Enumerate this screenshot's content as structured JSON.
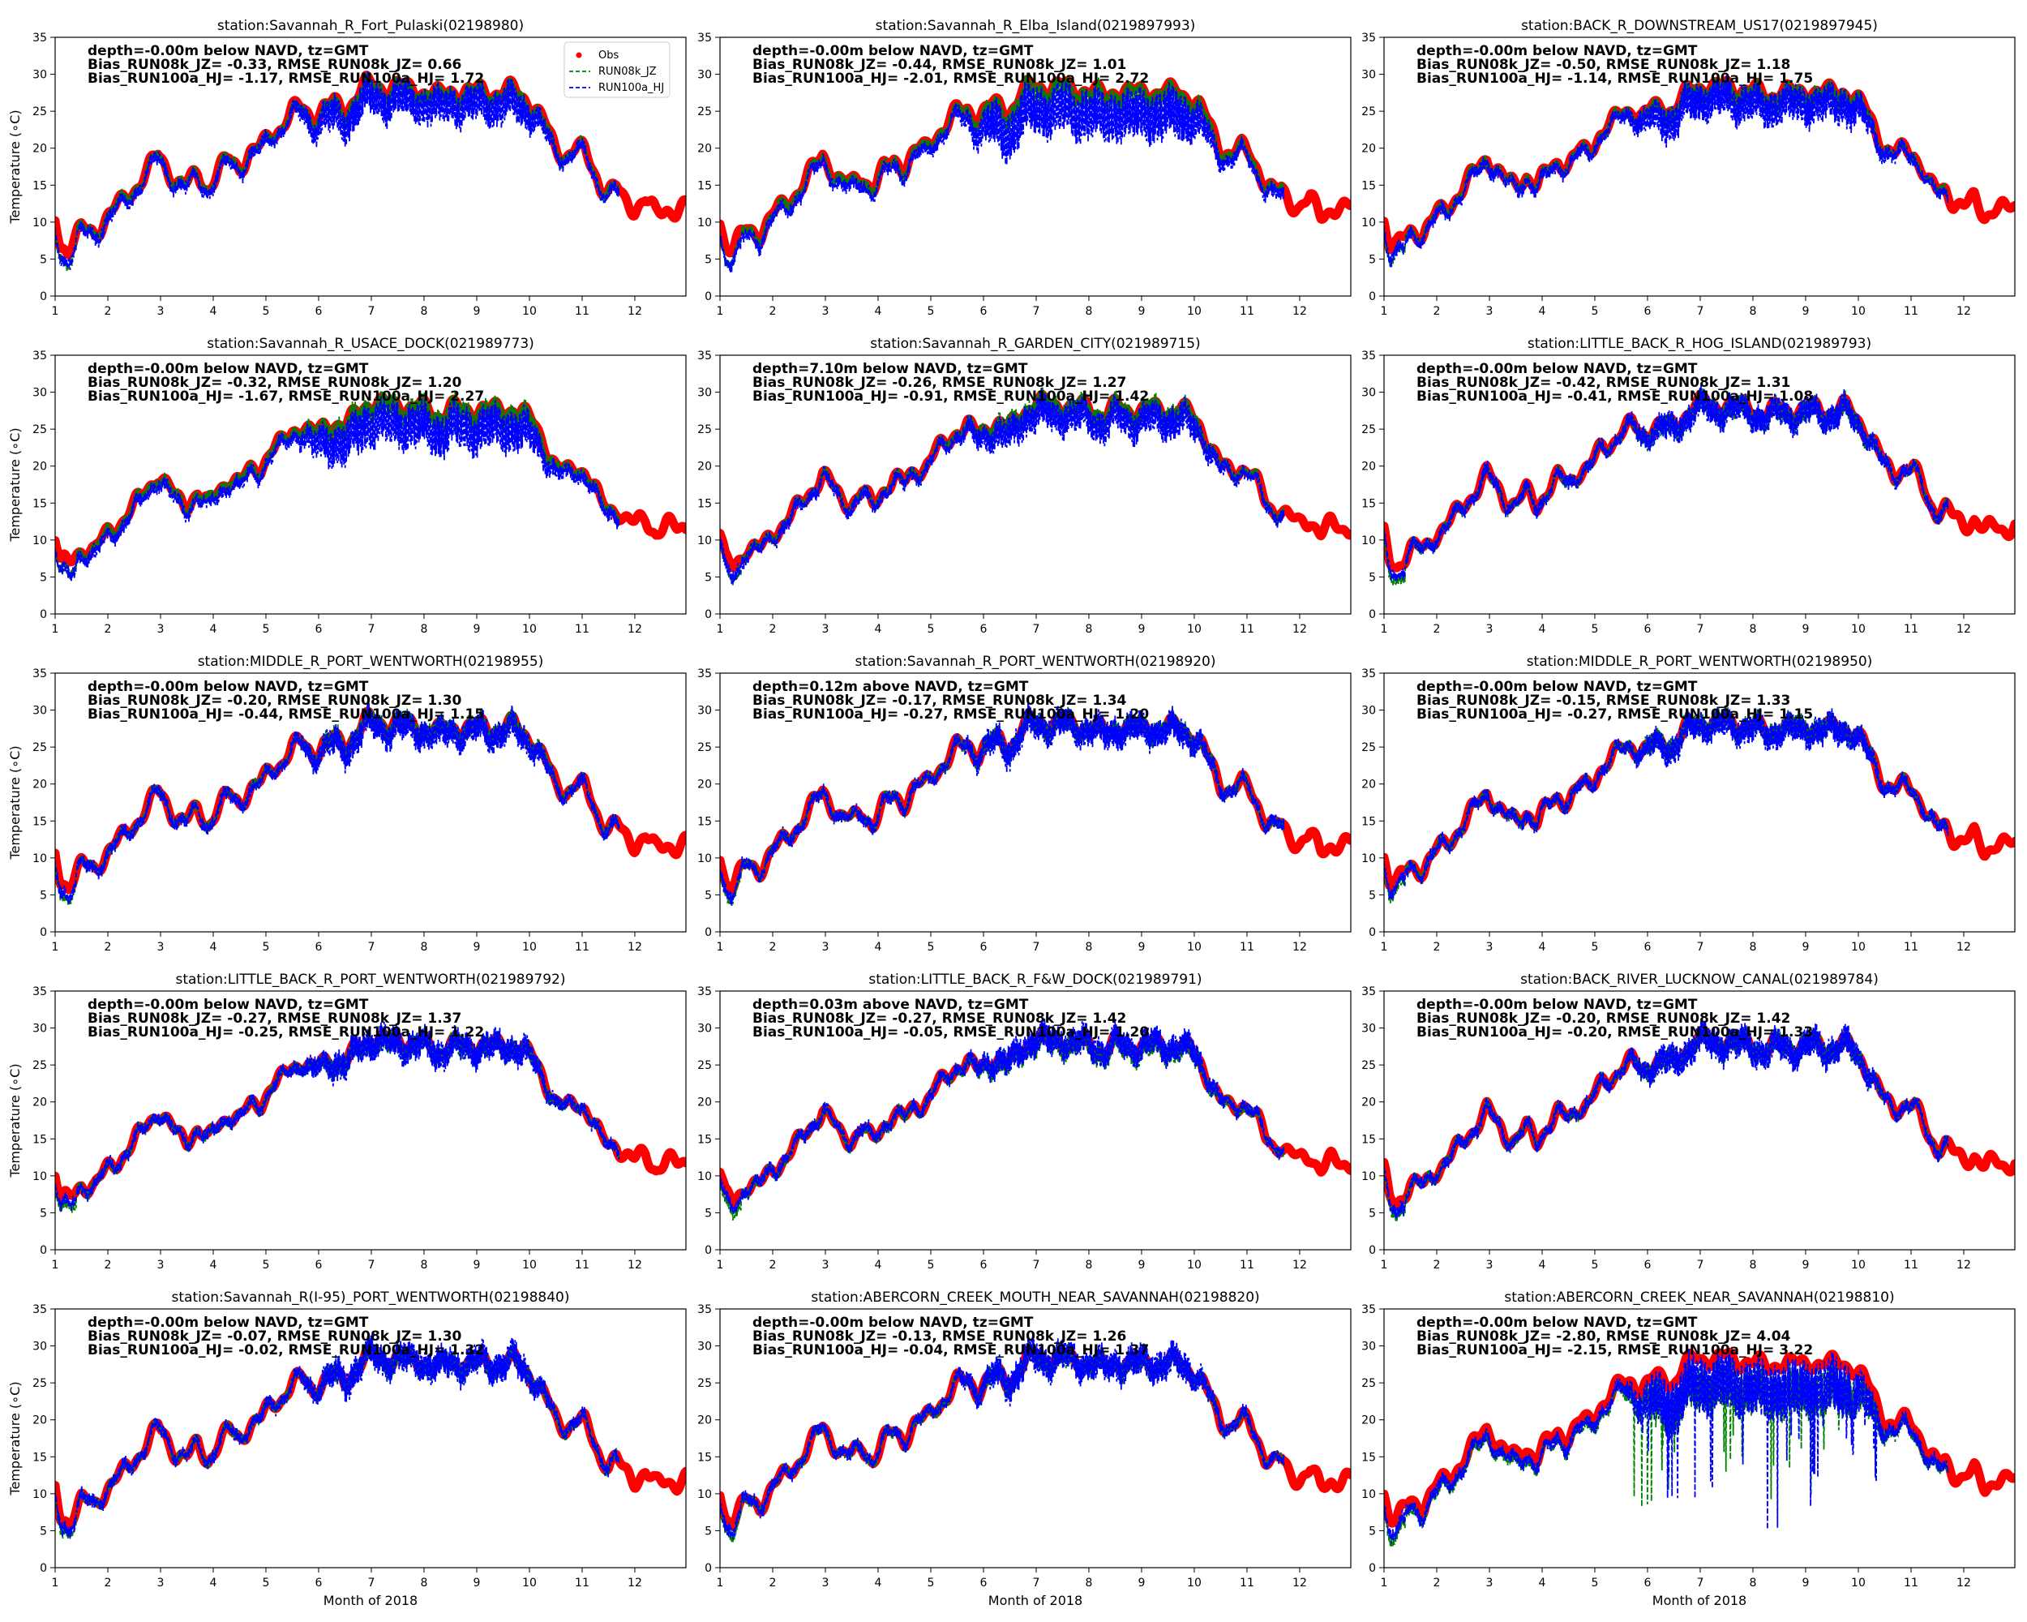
{
  "colors": {
    "obs": "#ff0000",
    "run08k": "#008000",
    "run100a": "#0000ff"
  },
  "chart_data": {
    "type": "line",
    "ylabel": "Temperature (∘C)",
    "xlabel": "Month of 2018",
    "xlim": [
      1,
      12.97
    ],
    "ylim": [
      0,
      35
    ],
    "xticks": [
      "1",
      "2",
      "3",
      "4",
      "5",
      "6",
      "7",
      "8",
      "9",
      "10",
      "11",
      "12"
    ],
    "yticks": [
      "0",
      "5",
      "10",
      "15",
      "20",
      "25",
      "30",
      "35"
    ],
    "grid": false,
    "legend": {
      "placement": "top-right",
      "panel": 0,
      "entries": [
        {
          "label": "Obs",
          "marker": "dot",
          "color": "#ff0000"
        },
        {
          "label": "RUN08k_JZ",
          "marker": "dash",
          "color": "#008000"
        },
        {
          "label": "RUN100a_HJ",
          "marker": "dash",
          "color": "#0000ff"
        }
      ]
    },
    "reference_curve": {
      "x": [
        1,
        1.1,
        1.25,
        1.5,
        1.75,
        2,
        2.25,
        2.5,
        2.75,
        2.95,
        3.1,
        3.3,
        3.5,
        3.7,
        3.9,
        4.1,
        4.3,
        4.5,
        4.7,
        4.9,
        5.1,
        5.3,
        5.5,
        5.7,
        5.9,
        6.1,
        6.3,
        6.5,
        6.7,
        6.9,
        7.1,
        7.3,
        7.5,
        7.7,
        7.9,
        8.1,
        8.3,
        8.5,
        8.7,
        8.9,
        9.1,
        9.3,
        9.5,
        9.7,
        9.9,
        10.1,
        10.3,
        10.5,
        10.7,
        10.9,
        11.05,
        11.2,
        11.35,
        11.5,
        11.65,
        11.8,
        12,
        12.2,
        12.4,
        12.6,
        12.8,
        12.97
      ],
      "y": [
        10.5,
        7,
        6.5,
        9,
        8.5,
        11,
        12.5,
        14.5,
        17,
        19,
        17.5,
        15.5,
        15,
        16.5,
        14.5,
        17,
        18.5,
        17.5,
        19.5,
        20,
        22,
        23,
        25,
        25.5,
        24,
        25.5,
        26,
        25,
        27,
        28.5,
        28.5,
        28,
        28.5,
        28,
        28,
        27.5,
        27,
        28,
        27.5,
        27.5,
        28,
        27.5,
        27.5,
        28,
        27,
        25.5,
        23,
        20,
        19,
        20,
        19.5,
        17.5,
        15,
        14,
        14.5,
        13,
        12,
        13,
        11,
        12,
        11.5,
        12
      ]
    },
    "panels": [
      {
        "title": "station:Savannah_R_Fort_Pulaski(02198980)",
        "stats": [
          "depth=-0.00m below NAVD, tz=GMT",
          "Bias_RUN08k_JZ= -0.33, RMSE_RUN08k_JZ= 0.66",
          "Bias_RUN100a_HJ= -1.17, RMSE_RUN100a_HJ= 1.72"
        ],
        "obs_until": 12.97,
        "model_until": 11.7,
        "bias08": -0.33,
        "bias100": -1.17,
        "rmse08": 0.66,
        "rmse100": 1.72
      },
      {
        "title": "station:Savannah_R_Elba_Island(0219897993)",
        "stats": [
          "depth=-0.00m below NAVD, tz=GMT",
          "Bias_RUN08k_JZ= -0.44, RMSE_RUN08k_JZ= 1.01",
          "Bias_RUN100a_HJ= -2.01, RMSE_RUN100a_HJ= 2.72"
        ],
        "obs_until": 12.97,
        "model_until": 11.7,
        "bias08": -0.44,
        "bias100": -2.01,
        "rmse08": 1.01,
        "rmse100": 2.72
      },
      {
        "title": "station:BACK_R_DOWNSTREAM_US17(0219897945)",
        "stats": [
          "depth=-0.00m below NAVD, tz=GMT",
          "Bias_RUN08k_JZ= -0.50, RMSE_RUN08k_JZ= 1.18",
          "Bias_RUN100a_HJ= -1.14, RMSE_RUN100a_HJ= 1.75"
        ],
        "obs_until": 12.97,
        "model_until": 11.7,
        "bias08": -0.5,
        "bias100": -1.14,
        "rmse08": 1.18,
        "rmse100": 1.75
      },
      {
        "title": "station:Savannah_R_USACE_DOCK(021989773)",
        "stats": [
          "depth=-0.00m below NAVD, tz=GMT",
          "Bias_RUN08k_JZ= -0.32, RMSE_RUN08k_JZ= 1.20",
          "Bias_RUN100a_HJ= -1.67, RMSE_RUN100a_HJ= 2.27"
        ],
        "obs_until": 12.97,
        "model_until": 11.7,
        "bias08": -0.32,
        "bias100": -1.67,
        "rmse08": 1.2,
        "rmse100": 2.27
      },
      {
        "title": "station:Savannah_R_GARDEN_CITY(021989715)",
        "stats": [
          "depth=7.10m below NAVD, tz=GMT",
          "Bias_RUN08k_JZ= -0.26, RMSE_RUN08k_JZ= 1.27",
          "Bias_RUN100a_HJ= -0.91, RMSE_RUN100a_HJ= 1.42"
        ],
        "obs_until": 12.97,
        "model_until": 11.7,
        "bias08": -0.26,
        "bias100": -0.91,
        "rmse08": 1.27,
        "rmse100": 1.42
      },
      {
        "title": "station:LITTLE_BACK_R_HOG_ISLAND(021989793)",
        "stats": [
          "depth=-0.00m below NAVD, tz=GMT",
          "Bias_RUN08k_JZ= -0.42, RMSE_RUN08k_JZ= 1.31",
          "Bias_RUN100a_HJ= -0.41, RMSE_RUN100a_HJ= 1.08"
        ],
        "obs_until": 12.97,
        "model_until": 11.7,
        "bias08": -0.42,
        "bias100": -0.41,
        "rmse08": 1.31,
        "rmse100": 1.08
      },
      {
        "title": "station:MIDDLE_R_PORT_WENTWORTH(02198955)",
        "stats": [
          "depth=-0.00m below NAVD, tz=GMT",
          "Bias_RUN08k_JZ= -0.20, RMSE_RUN08k_JZ= 1.30",
          "Bias_RUN100a_HJ= -0.44, RMSE_RUN100a_HJ= 1.15"
        ],
        "obs_until": 12.97,
        "model_until": 11.7,
        "bias08": -0.2,
        "bias100": -0.44,
        "rmse08": 1.3,
        "rmse100": 1.15
      },
      {
        "title": "station:Savannah_R_PORT_WENTWORTH(02198920)",
        "stats": [
          "depth=0.12m above NAVD, tz=GMT",
          "Bias_RUN08k_JZ= -0.17, RMSE_RUN08k_JZ= 1.34",
          "Bias_RUN100a_HJ= -0.27, RMSE_RUN100a_HJ= 1.20"
        ],
        "obs_until": 12.97,
        "model_until": 11.7,
        "bias08": -0.17,
        "bias100": -0.27,
        "rmse08": 1.34,
        "rmse100": 1.2
      },
      {
        "title": "station:MIDDLE_R_PORT_WENTWORTH(02198950)",
        "stats": [
          "depth=-0.00m below NAVD, tz=GMT",
          "Bias_RUN08k_JZ= -0.15, RMSE_RUN08k_JZ= 1.33",
          "Bias_RUN100a_HJ= -0.27, RMSE_RUN100a_HJ= 1.15"
        ],
        "obs_until": 12.97,
        "model_until": 11.7,
        "bias08": -0.15,
        "bias100": -0.27,
        "rmse08": 1.33,
        "rmse100": 1.15
      },
      {
        "title": "station:LITTLE_BACK_R_PORT_WENTWORTH(021989792)",
        "stats": [
          "depth=-0.00m below NAVD, tz=GMT",
          "Bias_RUN08k_JZ= -0.27, RMSE_RUN08k_JZ= 1.37",
          "Bias_RUN100a_HJ= -0.25, RMSE_RUN100a_HJ= 1.22"
        ],
        "obs_until": 12.97,
        "model_until": 11.7,
        "bias08": -0.27,
        "bias100": -0.25,
        "rmse08": 1.37,
        "rmse100": 1.22
      },
      {
        "title": "station:LITTLE_BACK_R_F&W_DOCK(021989791)",
        "stats": [
          "depth=0.03m above NAVD, tz=GMT",
          "Bias_RUN08k_JZ= -0.27, RMSE_RUN08k_JZ= 1.42",
          "Bias_RUN100a_HJ= -0.05, RMSE_RUN100a_HJ= 1.20"
        ],
        "obs_until": 12.97,
        "model_until": 11.7,
        "bias08": -0.27,
        "bias100": -0.05,
        "rmse08": 1.42,
        "rmse100": 1.2
      },
      {
        "title": "station:BACK_RIVER_LUCKNOW_CANAL(021989784)",
        "stats": [
          "depth=-0.00m below NAVD, tz=GMT",
          "Bias_RUN08k_JZ= -0.20, RMSE_RUN08k_JZ= 1.42",
          "Bias_RUN100a_HJ= -0.20, RMSE_RUN100a_HJ= 1.33"
        ],
        "obs_until": 12.97,
        "model_until": 11.7,
        "bias08": -0.2,
        "bias100": -0.2,
        "rmse08": 1.42,
        "rmse100": 1.33
      },
      {
        "title": "station:Savannah_R(I-95)_PORT_WENTWORTH(02198840)",
        "stats": [
          "depth=-0.00m below NAVD, tz=GMT",
          "Bias_RUN08k_JZ= -0.07, RMSE_RUN08k_JZ= 1.30",
          "Bias_RUN100a_HJ= -0.02, RMSE_RUN100a_HJ= 1.32"
        ],
        "obs_until": 12.97,
        "model_until": 11.7,
        "bias08": -0.07,
        "bias100": -0.02,
        "rmse08": 1.3,
        "rmse100": 1.32
      },
      {
        "title": "station:ABERCORN_CREEK_MOUTH_NEAR_SAVANNAH(02198820)",
        "stats": [
          "depth=-0.00m below NAVD, tz=GMT",
          "Bias_RUN08k_JZ= -0.13, RMSE_RUN08k_JZ= 1.26",
          "Bias_RUN100a_HJ= -0.04, RMSE_RUN100a_HJ= 1.37"
        ],
        "obs_until": 12.97,
        "model_until": 11.7,
        "bias08": -0.13,
        "bias100": -0.04,
        "rmse08": 1.26,
        "rmse100": 1.37
      },
      {
        "title": "station:ABERCORN_CREEK_NEAR_SAVANNAH(02198810)",
        "stats": [
          "depth=-0.00m below NAVD, tz=GMT",
          "Bias_RUN08k_JZ= -2.80, RMSE_RUN08k_JZ= 4.04",
          "Bias_RUN100a_HJ= -2.15, RMSE_RUN100a_HJ= 3.22"
        ],
        "obs_until": 12.97,
        "model_until": 11.7,
        "bias08": -2.8,
        "bias100": -2.15,
        "rmse08": 4.04,
        "rmse100": 3.22
      }
    ]
  }
}
